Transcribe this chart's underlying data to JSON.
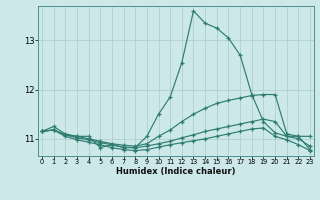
{
  "xlabel": "Humidex (Indice chaleur)",
  "bg_color": "#cce8e8",
  "grid_color": "#aacccc",
  "line_color": "#2e7d72",
  "xlim": [
    -0.3,
    23.3
  ],
  "ylim": [
    10.65,
    13.7
  ],
  "yticks": [
    11,
    12,
    13
  ],
  "line1_y": [
    11.15,
    11.25,
    11.1,
    11.05,
    11.05,
    10.82,
    10.88,
    10.82,
    10.82,
    11.05,
    11.5,
    11.85,
    12.55,
    13.6,
    13.35,
    13.25,
    13.05,
    12.7,
    11.9,
    11.35,
    11.12,
    11.05,
    11.05,
    10.78
  ],
  "line2_y": [
    11.15,
    11.18,
    11.08,
    11.05,
    11.0,
    10.95,
    10.9,
    10.87,
    10.85,
    10.9,
    11.05,
    11.18,
    11.35,
    11.5,
    11.62,
    11.72,
    11.78,
    11.83,
    11.88,
    11.9,
    11.9,
    11.1,
    11.05,
    11.05
  ],
  "line3_y": [
    11.15,
    11.18,
    11.08,
    11.02,
    10.98,
    10.92,
    10.88,
    10.83,
    10.82,
    10.85,
    10.9,
    10.95,
    11.02,
    11.08,
    11.15,
    11.2,
    11.25,
    11.3,
    11.35,
    11.4,
    11.35,
    11.05,
    11.0,
    10.85
  ],
  "line4_y": [
    11.15,
    11.18,
    11.05,
    10.98,
    10.93,
    10.88,
    10.82,
    10.78,
    10.76,
    10.78,
    10.83,
    10.88,
    10.92,
    10.96,
    11.0,
    11.05,
    11.1,
    11.15,
    11.2,
    11.22,
    11.05,
    10.98,
    10.88,
    10.76
  ]
}
